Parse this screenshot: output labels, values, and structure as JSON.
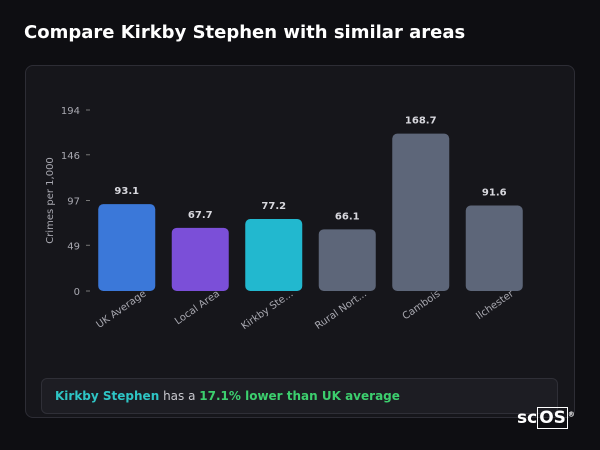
{
  "header": {
    "title": "Compare Kirkby Stephen with similar areas"
  },
  "chart_data": {
    "type": "bar",
    "y_label": "Crimes per 1,000",
    "categories": [
      "UK Average",
      "Local Area",
      "Kirkby Ste...",
      "Rural Nort...",
      "Cambois",
      "Ilchester"
    ],
    "values": [
      93.1,
      67.7,
      77.2,
      66.1,
      168.7,
      91.6
    ],
    "colors": [
      "#3b78d9",
      "#7b4fd8",
      "#22b8cf",
      "#5d6679",
      "#5d6679",
      "#5d6679"
    ],
    "ylim": [
      0,
      194
    ],
    "yticks": [
      0,
      49,
      97,
      146,
      194
    ],
    "grid": false
  },
  "summary": {
    "place": "Kirkby Stephen",
    "text": "has a",
    "highlight": "17.1% lower than UK average"
  },
  "logo": {
    "prefix": "sc",
    "boxed": "OS",
    "mark": "®"
  }
}
